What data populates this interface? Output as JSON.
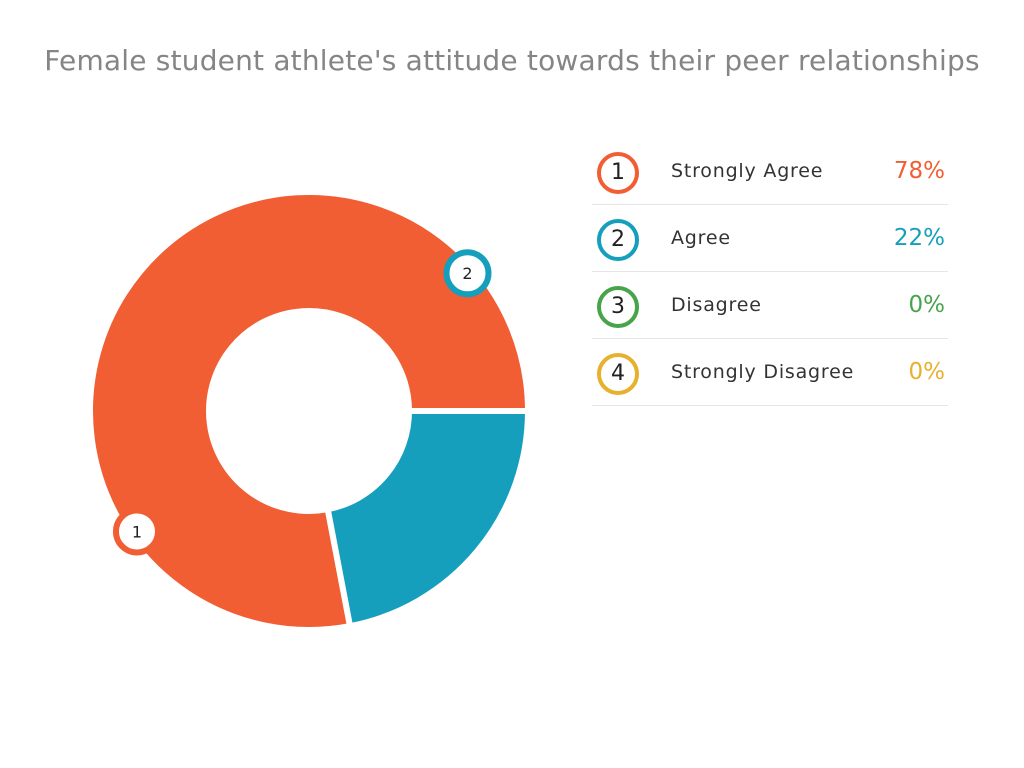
{
  "chart_data": {
    "type": "pie",
    "title": "Female student athlete's attitude towards their peer relationships",
    "categories": [
      "Strongly Agree",
      "Agree",
      "Disagree",
      "Strongly Disagree"
    ],
    "values": [
      78,
      22,
      0,
      0
    ],
    "value_labels": [
      "78%",
      "22%",
      "0%",
      "0%"
    ],
    "slice_numbers": [
      "1",
      "2",
      "3",
      "4"
    ],
    "colors": [
      "#f15e33",
      "#169fbc",
      "#47a44b",
      "#e8b02f"
    ],
    "legend": "right"
  }
}
